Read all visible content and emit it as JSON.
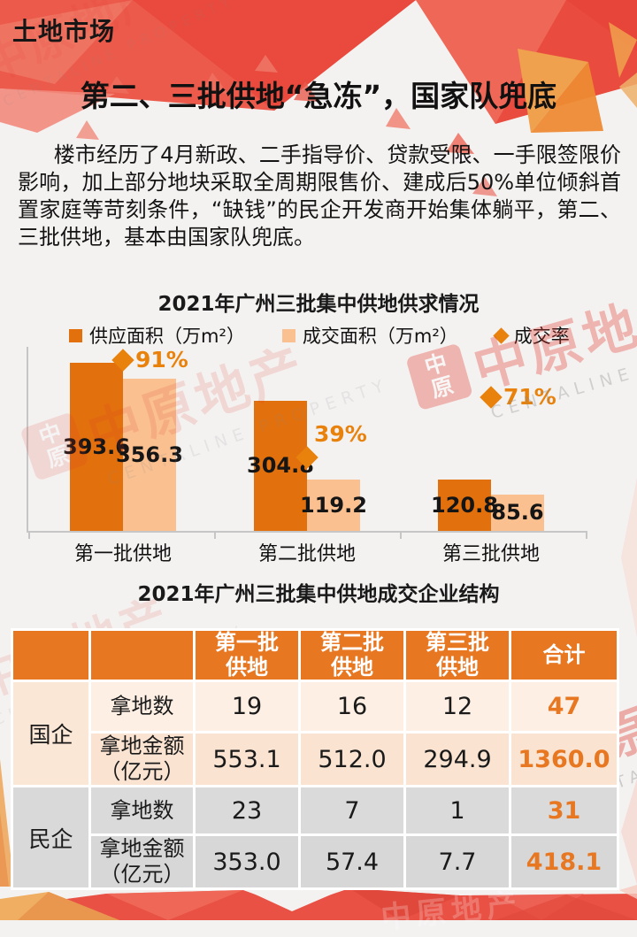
{
  "page": {
    "kicker": "土地市场",
    "title": "第二、三批供地“急冻”，国家队兜底",
    "paragraph": "楼市经历了4月新政、二手指导价、贷款受限、一手限签限价影响，加上部分地块采取全周期限售价、建成后50%单位倾斜首置家庭等苛刻条件，“缺钱”的民企开发商开始集体躺平，第二、三批供地，基本由国家队兜底。"
  },
  "watermark": {
    "stamp_top": "中",
    "stamp_bottom": "原",
    "text": "中原地产",
    "subtext": "CENTALINE PROPERTY"
  },
  "colors": {
    "primary": "#E2700D",
    "primary_light": "#FAC090",
    "pct": "#E8820C",
    "table_header": "#E87722",
    "table_orange": "#E87722",
    "axis": "#C6C6C6",
    "banner_red": "#E85144",
    "banner_orange": "#F0A14D",
    "row_soe": "#FBE7D6",
    "row_poe": "#D9D9D9"
  },
  "chart_data": [
    {
      "type": "bar",
      "title": "2021年广州三批集中供地供求情况",
      "categories": [
        "第一批供地",
        "第二批供地",
        "第三批供地"
      ],
      "series": [
        {
          "name": "供应面积（万m²）",
          "type": "bar",
          "values": [
            393.6,
            304.8,
            120.8
          ],
          "color": "#E2700D"
        },
        {
          "name": "成交面积（万m²）",
          "type": "bar",
          "values": [
            356.3,
            119.2,
            85.6
          ],
          "color": "#FAC090"
        },
        {
          "name": "成交率",
          "type": "point",
          "unit": "%",
          "values": [
            91,
            39,
            71
          ],
          "color": "#E8820C"
        }
      ],
      "value_labels": true,
      "legend_position": "top",
      "ylim": [
        0,
        430
      ],
      "pct_axis": [
        0,
        100
      ],
      "grid": false
    },
    {
      "type": "table",
      "title": "2021年广州三批集中供地成交企业结构",
      "columns": [
        "",
        "",
        "第一批\n供地",
        "第二批\n供地",
        "第三批\n供地",
        "合计"
      ],
      "rows": [
        {
          "group": "国企",
          "label": "拿地数",
          "values": [
            "19",
            "16",
            "12",
            "47"
          ]
        },
        {
          "label": "拿地金额\n（亿元）",
          "values": [
            "553.1",
            "512.0",
            "294.9",
            "1360.0"
          ]
        },
        {
          "group": "民企",
          "label": "拿地数",
          "values": [
            "23",
            "7",
            "1",
            "31"
          ]
        },
        {
          "label": "拿地金额\n（亿元）",
          "values": [
            "353.0",
            "57.4",
            "7.7",
            "418.1"
          ]
        }
      ],
      "highlight_column": "合计"
    }
  ]
}
